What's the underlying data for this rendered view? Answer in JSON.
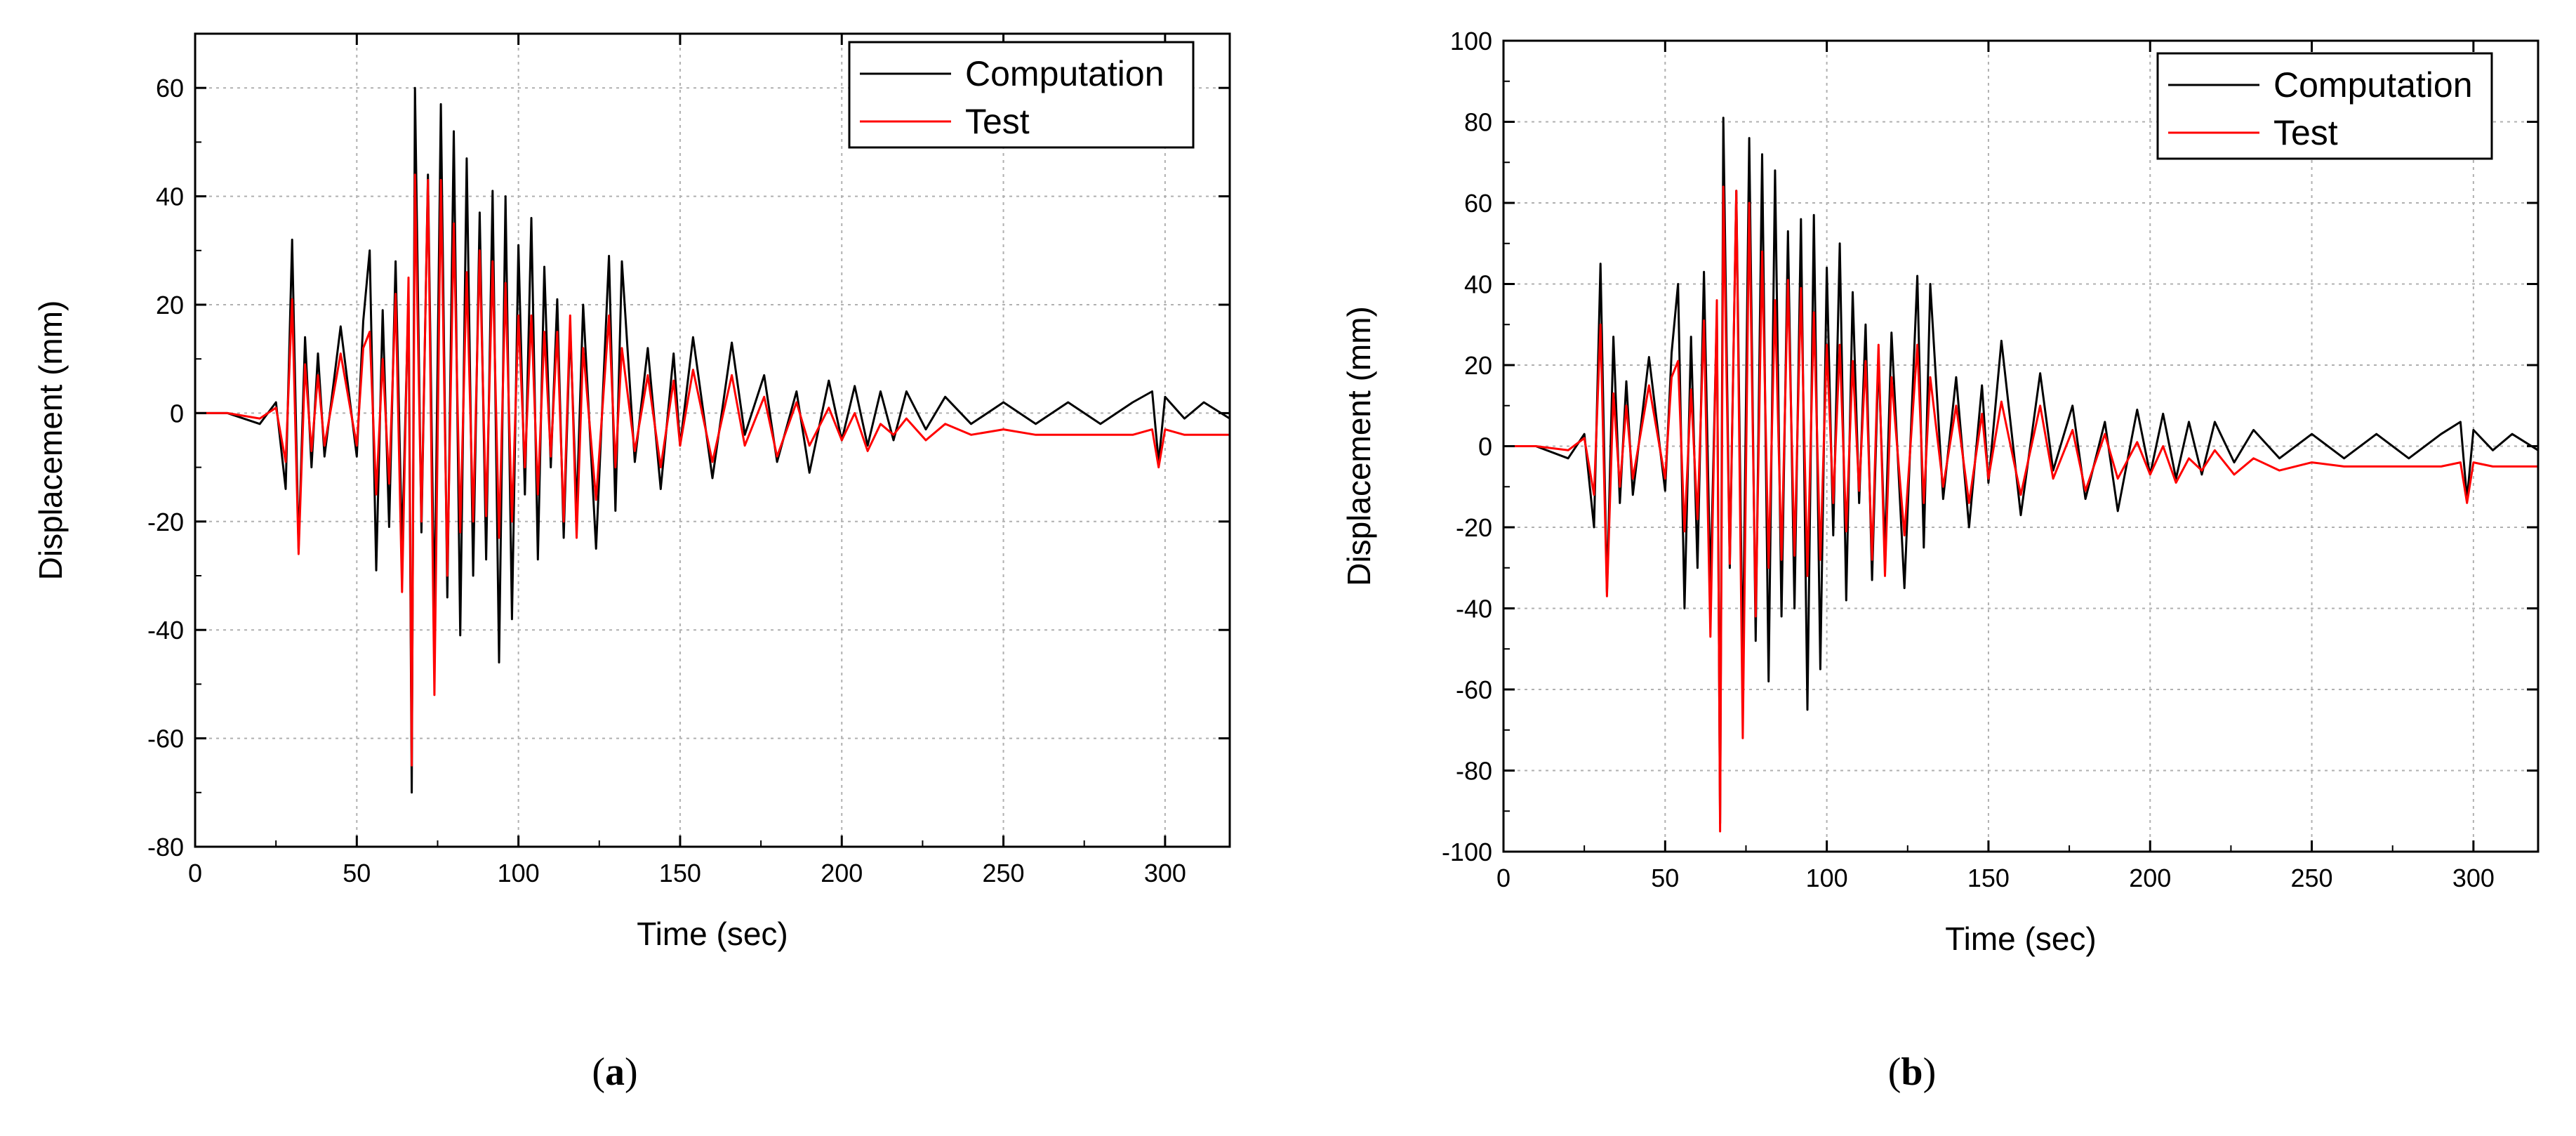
{
  "chart_data": [
    {
      "type": "line",
      "panel_label": "a",
      "xlabel": "Time (sec)",
      "ylabel": "Displacement (mm)",
      "xlim": [
        0,
        320
      ],
      "ylim": [
        -80,
        70
      ],
      "x_ticks": [
        0,
        50,
        100,
        150,
        200,
        250,
        300
      ],
      "y_ticks": [
        -80,
        -60,
        -40,
        -20,
        0,
        20,
        40,
        60
      ],
      "x_tick_labels": [
        "0",
        "50",
        "100",
        "150",
        "200",
        "250",
        "300"
      ],
      "y_tick_labels": [
        "-80",
        "-60",
        "-40",
        "-20",
        "0",
        "20",
        "40",
        "60"
      ],
      "grid": true,
      "legend_position": "top-right",
      "series": [
        {
          "name": "Computation",
          "color": "#000000",
          "x": [
            0,
            10,
            20,
            25,
            28,
            30,
            32,
            34,
            36,
            38,
            40,
            45,
            50,
            52,
            54,
            56,
            58,
            60,
            62,
            64,
            66,
            67,
            68,
            70,
            72,
            74,
            76,
            78,
            80,
            82,
            84,
            86,
            88,
            90,
            92,
            94,
            96,
            98,
            100,
            102,
            104,
            106,
            108,
            110,
            112,
            114,
            116,
            118,
            120,
            124,
            128,
            130,
            132,
            136,
            140,
            144,
            148,
            150,
            154,
            160,
            166,
            170,
            176,
            180,
            186,
            190,
            196,
            200,
            204,
            208,
            212,
            216,
            220,
            226,
            232,
            240,
            250,
            260,
            270,
            280,
            290,
            296,
            298,
            300,
            306,
            312,
            320
          ],
          "y": [
            0,
            0,
            -2,
            2,
            -14,
            32,
            -25,
            14,
            -10,
            11,
            -8,
            16,
            -8,
            17,
            30,
            -29,
            19,
            -21,
            28,
            -25,
            22,
            -70,
            60,
            -22,
            44,
            -38,
            57,
            -34,
            52,
            -41,
            47,
            -30,
            37,
            -27,
            41,
            -46,
            40,
            -38,
            31,
            -15,
            36,
            -27,
            27,
            -10,
            21,
            -23,
            16,
            -18,
            20,
            -25,
            29,
            -18,
            28,
            -9,
            12,
            -14,
            11,
            -6,
            14,
            -12,
            13,
            -4,
            7,
            -9,
            4,
            -11,
            6,
            -5,
            5,
            -6,
            4,
            -5,
            4,
            -3,
            3,
            -2,
            2,
            -2,
            2,
            -2,
            2,
            4,
            -9,
            3,
            -1,
            2,
            -1
          ]
        },
        {
          "name": "Test",
          "color": "#ff0000",
          "x": [
            0,
            10,
            20,
            25,
            28,
            30,
            32,
            34,
            36,
            38,
            40,
            45,
            50,
            52,
            54,
            56,
            58,
            60,
            62,
            64,
            66,
            67,
            68,
            70,
            72,
            74,
            76,
            78,
            80,
            82,
            84,
            86,
            88,
            90,
            92,
            94,
            96,
            98,
            100,
            102,
            104,
            106,
            108,
            110,
            112,
            114,
            116,
            118,
            120,
            124,
            128,
            130,
            132,
            136,
            140,
            144,
            148,
            150,
            154,
            160,
            166,
            170,
            176,
            180,
            186,
            190,
            196,
            200,
            204,
            208,
            212,
            216,
            220,
            226,
            232,
            240,
            250,
            260,
            270,
            280,
            290,
            296,
            298,
            300,
            306,
            312,
            320
          ],
          "y": [
            0,
            0,
            -1,
            1,
            -9,
            21,
            -26,
            9,
            -7,
            7,
            -6,
            11,
            -6,
            12,
            15,
            -15,
            10,
            -13,
            22,
            -33,
            25,
            -65,
            44,
            -20,
            43,
            -52,
            43,
            -30,
            35,
            -22,
            26,
            -20,
            30,
            -19,
            28,
            -23,
            24,
            -20,
            18,
            -10,
            18,
            -15,
            15,
            -8,
            15,
            -20,
            18,
            -23,
            12,
            -16,
            18,
            -10,
            12,
            -7,
            7,
            -10,
            6,
            -6,
            8,
            -9,
            7,
            -6,
            3,
            -8,
            2,
            -6,
            1,
            -5,
            0,
            -7,
            -2,
            -4,
            -1,
            -5,
            -2,
            -4,
            -3,
            -4,
            -4,
            -4,
            -4,
            -3,
            -10,
            -3,
            -4,
            -4,
            -4
          ]
        }
      ]
    },
    {
      "type": "line",
      "panel_label": "b",
      "xlabel": "Time (sec)",
      "ylabel": "Displacement (mm)",
      "xlim": [
        0,
        320
      ],
      "ylim": [
        -100,
        100
      ],
      "x_ticks": [
        0,
        50,
        100,
        150,
        200,
        250,
        300
      ],
      "y_ticks": [
        -100,
        -80,
        -60,
        -40,
        -20,
        0,
        20,
        40,
        60,
        80,
        100
      ],
      "x_tick_labels": [
        "0",
        "50",
        "100",
        "150",
        "200",
        "250",
        "300"
      ],
      "y_tick_labels": [
        "-100",
        "-80",
        "-60",
        "-40",
        "-20",
        "0",
        "20",
        "40",
        "60",
        "80",
        "100"
      ],
      "grid": true,
      "legend_position": "top-right",
      "series": [
        {
          "name": "Computation",
          "color": "#000000",
          "x": [
            0,
            10,
            20,
            25,
            28,
            30,
            32,
            34,
            36,
            38,
            40,
            45,
            50,
            52,
            54,
            56,
            58,
            60,
            62,
            64,
            66,
            67,
            68,
            70,
            72,
            74,
            76,
            78,
            80,
            82,
            84,
            86,
            88,
            90,
            92,
            94,
            96,
            98,
            100,
            102,
            104,
            106,
            108,
            110,
            112,
            114,
            116,
            118,
            120,
            124,
            128,
            130,
            132,
            136,
            140,
            144,
            148,
            150,
            154,
            160,
            166,
            170,
            176,
            180,
            186,
            190,
            196,
            200,
            204,
            208,
            212,
            216,
            220,
            226,
            232,
            240,
            250,
            260,
            270,
            280,
            290,
            296,
            298,
            300,
            306,
            312,
            320
          ],
          "y": [
            0,
            0,
            -3,
            3,
            -20,
            45,
            -36,
            27,
            -14,
            16,
            -12,
            22,
            -11,
            23,
            40,
            -40,
            27,
            -30,
            43,
            -35,
            33,
            -93,
            81,
            -30,
            63,
            -55,
            76,
            -48,
            72,
            -58,
            68,
            -42,
            53,
            -40,
            56,
            -65,
            57,
            -55,
            44,
            -22,
            50,
            -38,
            38,
            -14,
            30,
            -33,
            22,
            -26,
            28,
            -35,
            42,
            -25,
            40,
            -13,
            17,
            -20,
            15,
            -9,
            26,
            -17,
            18,
            -6,
            10,
            -13,
            6,
            -16,
            9,
            -7,
            8,
            -8,
            6,
            -7,
            6,
            -4,
            4,
            -3,
            3,
            -3,
            3,
            -3,
            3,
            6,
            -13,
            4,
            -1,
            3,
            -1
          ]
        },
        {
          "name": "Test",
          "color": "#ff0000",
          "x": [
            0,
            10,
            20,
            25,
            28,
            30,
            32,
            34,
            36,
            38,
            40,
            45,
            50,
            52,
            54,
            56,
            58,
            60,
            62,
            64,
            66,
            67,
            68,
            70,
            72,
            74,
            76,
            78,
            80,
            82,
            84,
            86,
            88,
            90,
            92,
            94,
            96,
            98,
            100,
            102,
            104,
            106,
            108,
            110,
            112,
            114,
            116,
            118,
            120,
            124,
            128,
            130,
            132,
            136,
            140,
            144,
            148,
            150,
            154,
            160,
            166,
            170,
            176,
            180,
            186,
            190,
            196,
            200,
            204,
            208,
            212,
            216,
            220,
            226,
            232,
            240,
            250,
            260,
            270,
            280,
            290,
            296,
            298,
            300,
            306,
            312,
            320
          ],
          "y": [
            0,
            0,
            -1,
            2,
            -12,
            30,
            -37,
            13,
            -10,
            10,
            -8,
            15,
            -8,
            17,
            21,
            -21,
            14,
            -18,
            31,
            -47,
            36,
            -95,
            64,
            -29,
            63,
            -72,
            60,
            -42,
            48,
            -30,
            36,
            -28,
            41,
            -27,
            39,
            -32,
            33,
            -28,
            25,
            -14,
            25,
            -21,
            21,
            -11,
            21,
            -28,
            25,
            -32,
            17,
            -22,
            25,
            -14,
            17,
            -10,
            10,
            -14,
            8,
            -8,
            11,
            -12,
            10,
            -8,
            4,
            -11,
            3,
            -8,
            1,
            -7,
            0,
            -9,
            -3,
            -6,
            -1,
            -7,
            -3,
            -6,
            -4,
            -5,
            -5,
            -5,
            -5,
            -4,
            -14,
            -4,
            -5,
            -5,
            -5
          ]
        }
      ]
    }
  ]
}
